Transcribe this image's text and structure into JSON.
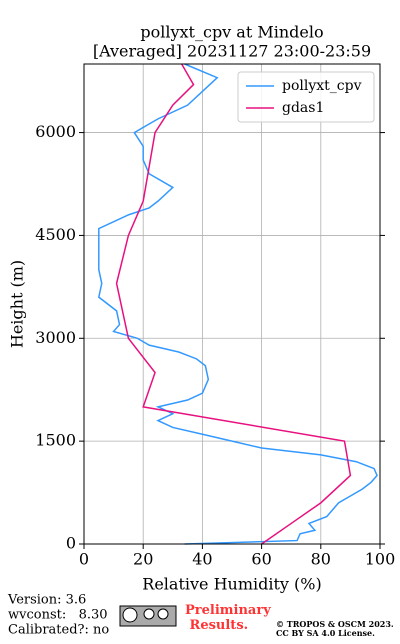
{
  "chart_data": {
    "type": "line",
    "title": "pollyxt_cpv at Mindelo",
    "subtitle": "[Averaged] 20231127 23:00-23:59",
    "x_label": "Relative Humidity (%)",
    "y_label": "Height (m)",
    "xlim": [
      0,
      100
    ],
    "xticks": [
      0,
      20,
      40,
      60,
      80,
      100
    ],
    "ylim": [
      0,
      7000
    ],
    "yticks": [
      0,
      1500,
      3000,
      4500,
      6000
    ],
    "grid": true,
    "legend": "upper right",
    "series": [
      {
        "name": "pollyxt_cpv",
        "color": "#3399ff",
        "y": [
          0,
          50,
          150,
          200,
          300,
          400,
          500,
          600,
          700,
          800,
          900,
          1000,
          1100,
          1200,
          1300,
          1400,
          1500,
          1600,
          1700,
          1800,
          1900,
          2000,
          2100,
          2200,
          2400,
          2600,
          2700,
          2800,
          2900,
          3000,
          3100,
          3200,
          3400,
          3600,
          3800,
          4000,
          4200,
          4400,
          4600,
          4800,
          4900,
          5000,
          5200,
          5400,
          5600,
          5800,
          6000,
          6200,
          6400,
          6600,
          6800,
          7000
        ],
        "values": [
          34,
          72,
          73,
          78,
          76,
          82,
          84,
          86,
          90,
          94,
          97,
          99,
          98,
          92,
          80,
          60,
          50,
          40,
          30,
          25,
          30,
          25,
          35,
          40,
          42,
          41,
          38,
          32,
          22,
          18,
          10,
          12,
          11,
          5,
          6,
          5,
          5,
          5,
          5,
          15,
          22,
          25,
          30,
          22,
          20,
          20,
          17,
          25,
          35,
          40,
          45,
          34
        ]
      },
      {
        "name": "gdas1",
        "color": "#e8107e",
        "y": [
          0,
          300,
          600,
          1000,
          1500,
          2000,
          2500,
          3000,
          3800,
          4500,
          5000,
          5500,
          6000,
          6400,
          6700,
          7000
        ],
        "values": [
          60,
          70,
          80,
          90,
          88,
          20,
          24,
          15,
          11,
          15,
          20,
          22,
          24,
          30,
          37,
          33
        ]
      }
    ]
  },
  "footer": {
    "version": "Version: 3.6",
    "wvconst": "wvconst:   8.30",
    "calibrated": "Calibrated?: no",
    "preliminary": "Preliminary Results.",
    "copyright": "© TROPOS & OSCM 2023.",
    "license": "CC BY SA 4.0 License."
  }
}
